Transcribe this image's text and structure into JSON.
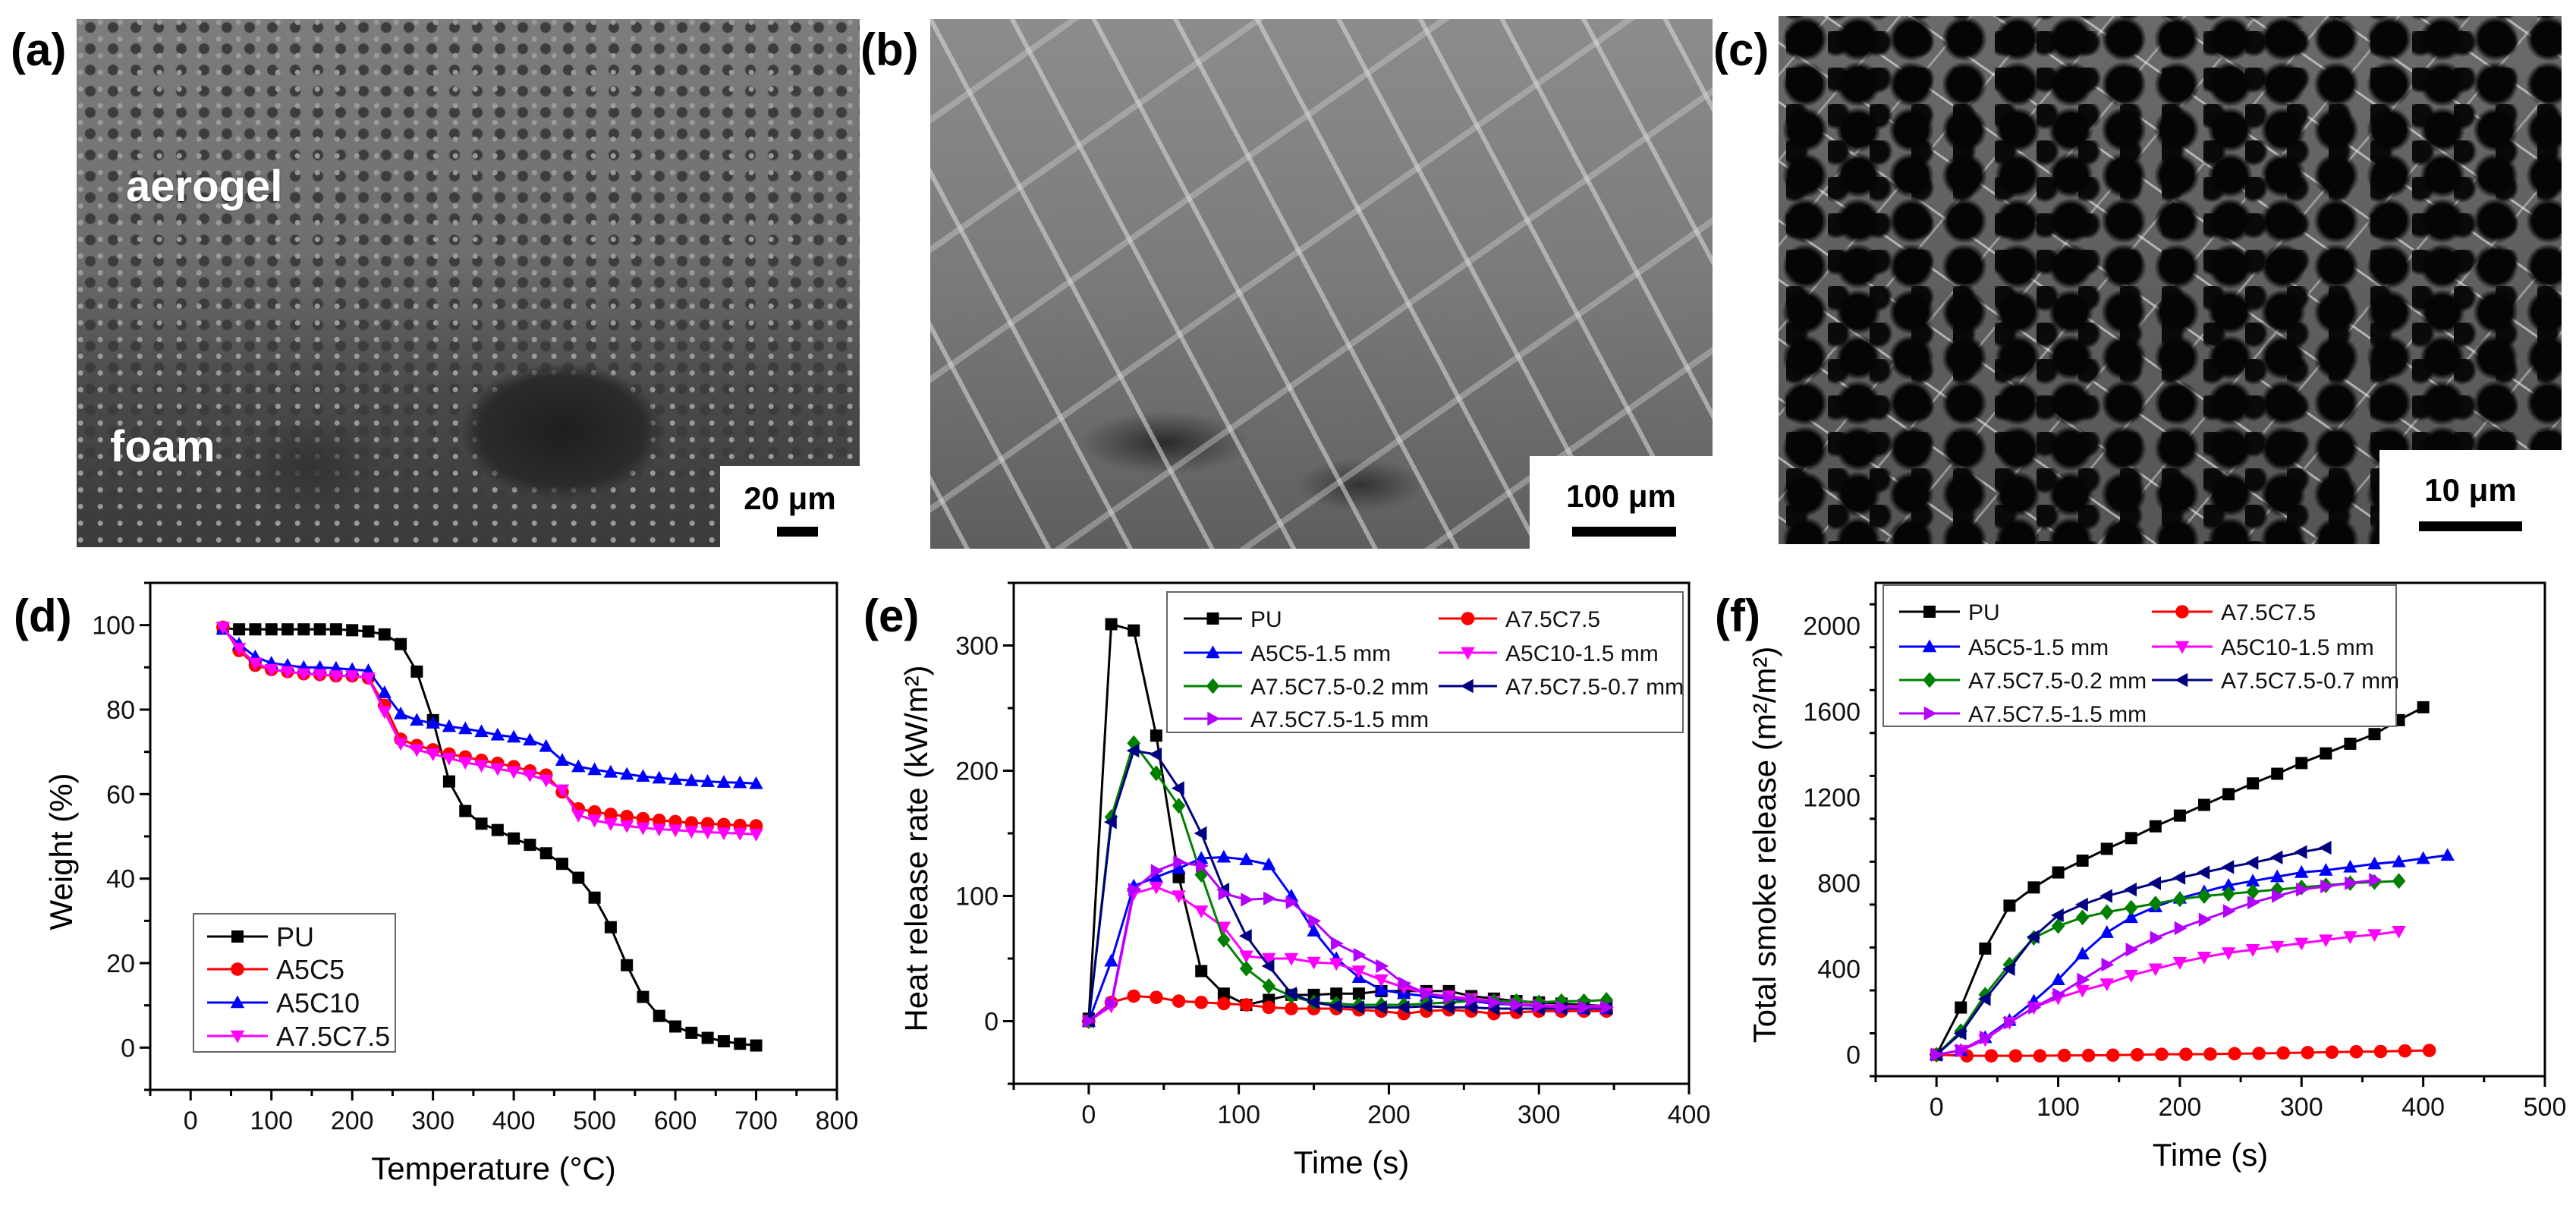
{
  "panels": {
    "a": {
      "label": "(a)",
      "annotations": [
        "aerogel",
        "foam"
      ],
      "scale_bar": "20 μm"
    },
    "b": {
      "label": "(b)",
      "scale_bar": "100 μm"
    },
    "c": {
      "label": "(c)",
      "scale_bar": "10 μm"
    }
  },
  "chart_data": [
    {
      "panel_label": "(d)",
      "type": "line",
      "title": "",
      "xlabel": "Temperature (°C)",
      "ylabel": "Weight (%)",
      "xlim": [
        -50,
        800
      ],
      "ylim": [
        -10,
        110
      ],
      "xticks": [
        0,
        100,
        200,
        300,
        400,
        500,
        600,
        700,
        800
      ],
      "yticks": [
        0,
        20,
        40,
        60,
        80,
        100
      ],
      "x_minor_step": 50,
      "y_minor_step": 10,
      "grid": false,
      "legend_position": "bottom-left",
      "x": [
        40,
        60,
        80,
        100,
        120,
        140,
        160,
        180,
        200,
        220,
        240,
        260,
        280,
        300,
        320,
        340,
        360,
        380,
        400,
        420,
        440,
        460,
        480,
        500,
        520,
        540,
        560,
        580,
        600,
        620,
        640,
        660,
        680,
        700
      ],
      "series": [
        {
          "name": "PU",
          "color": "#000000",
          "marker": "square",
          "y": [
            99.3,
            99,
            99,
            99,
            99,
            99,
            99,
            99,
            98.8,
            98.5,
            97.8,
            95.5,
            89,
            77.5,
            63,
            56,
            53,
            51.5,
            49.5,
            48,
            46,
            43.5,
            40.2,
            35.5,
            28.5,
            19.5,
            12,
            7.5,
            5,
            3.5,
            2.3,
            1.5,
            0.9,
            0.5
          ]
        },
        {
          "name": "A5C5",
          "color": "#ff0000",
          "marker": "circle",
          "y": [
            99.5,
            94,
            90.5,
            89.5,
            89,
            88.5,
            88.3,
            88,
            88,
            87.5,
            81,
            73,
            71.5,
            70.5,
            69.5,
            68.8,
            68,
            67.3,
            66.5,
            65.5,
            64.5,
            60.5,
            56.5,
            55.8,
            55.2,
            54.7,
            54.2,
            53.8,
            53.5,
            53.2,
            53,
            52.8,
            52.6,
            52.5
          ]
        },
        {
          "name": "A5C10",
          "color": "#0000ff",
          "marker": "triangle-up",
          "y": [
            99,
            95.5,
            92.5,
            91,
            90.5,
            90,
            90,
            89.8,
            89.5,
            89.2,
            84,
            79,
            77.5,
            76.8,
            76,
            75.5,
            74.8,
            74,
            73.5,
            72.8,
            71.3,
            68,
            66.5,
            65.8,
            65.2,
            64.7,
            64.2,
            63.8,
            63.5,
            63.2,
            63,
            62.8,
            62.7,
            62.5
          ]
        },
        {
          "name": "A7.5C7.5",
          "color": "#ff00ff",
          "marker": "triangle-down",
          "y": [
            99.5,
            94.5,
            91,
            89.5,
            89,
            88.5,
            88.3,
            88,
            88,
            87.5,
            79.5,
            72,
            70.5,
            69.5,
            68.5,
            67.5,
            66.8,
            66,
            65.3,
            64.5,
            63.3,
            61,
            55,
            53.8,
            53,
            52.5,
            52,
            51.7,
            51.5,
            51.2,
            51,
            50.8,
            50.7,
            50.5
          ]
        }
      ]
    },
    {
      "panel_label": "(e)",
      "type": "line",
      "title": "",
      "xlabel": "Time (s)",
      "ylabel": "Heat release rate (kW/m²)",
      "xlim": [
        -50,
        400
      ],
      "ylim": [
        -50,
        350
      ],
      "xticks": [
        0,
        100,
        200,
        300,
        400
      ],
      "yticks": [
        0,
        100,
        200,
        300
      ],
      "x_minor_step": 50,
      "y_minor_step": 50,
      "grid": false,
      "legend_position": "top-right",
      "x": [
        0,
        15,
        30,
        45,
        60,
        75,
        90,
        105,
        120,
        135,
        150,
        165,
        180,
        195,
        210,
        225,
        240,
        255,
        270,
        285,
        300,
        315,
        330,
        345
      ],
      "series": [
        {
          "name": "PU",
          "color": "#000000",
          "marker": "square",
          "y": [
            2,
            317,
            312,
            228,
            115,
            40,
            22,
            13,
            17,
            21,
            21,
            22,
            22,
            24,
            24,
            24,
            24,
            20,
            18,
            16,
            15,
            14,
            13,
            12
          ]
        },
        {
          "name": "A7.5C7.5",
          "color": "#ff0000",
          "marker": "circle",
          "y": [
            0,
            15,
            20,
            19,
            16,
            15,
            14,
            13,
            11,
            10,
            10,
            10,
            9,
            8,
            6,
            8,
            9,
            8,
            6,
            7,
            8,
            8,
            8,
            8
          ]
        },
        {
          "name": "A5C5-1.5 mm",
          "color": "#0000ff",
          "marker": "triangle-up",
          "y": [
            0,
            48,
            108,
            115,
            122,
            130,
            131,
            129,
            125,
            100,
            72,
            50,
            35,
            25,
            22,
            20,
            18,
            16,
            14,
            13,
            12,
            11,
            10,
            10
          ]
        },
        {
          "name": "A5C10-1.5 mm",
          "color": "#ff00ff",
          "marker": "triangle-down",
          "y": [
            0,
            12,
            102,
            107,
            100,
            88,
            75,
            52,
            50,
            50,
            47,
            46,
            40,
            33,
            27,
            22,
            20,
            18,
            16,
            14,
            13,
            12,
            12,
            12
          ]
        },
        {
          "name": "A7.5C7.5-0.2 mm",
          "color": "#008000",
          "marker": "diamond",
          "y": [
            0,
            163,
            222,
            198,
            172,
            117,
            65,
            42,
            28,
            20,
            15,
            14,
            13,
            13,
            13,
            14,
            15,
            16,
            16,
            16,
            15,
            16,
            16,
            17
          ]
        },
        {
          "name": "A7.5C7.5-0.7 mm",
          "color": "#000080",
          "marker": "triangle-left",
          "y": [
            0,
            159,
            216,
            213,
            186,
            150,
            105,
            68,
            44,
            22,
            15,
            12,
            11,
            11,
            11,
            12,
            11,
            11,
            10,
            10,
            10,
            10,
            10,
            10
          ]
        },
        {
          "name": "A7.5C7.5-1.5 mm",
          "color": "#b400ff",
          "marker": "triangle-right",
          "y": [
            0,
            14,
            105,
            120,
            127,
            124,
            102,
            97,
            98,
            95,
            80,
            62,
            53,
            44,
            30,
            22,
            19,
            17,
            15,
            13,
            12,
            11,
            11,
            11
          ]
        }
      ]
    },
    {
      "panel_label": "(f)",
      "type": "line",
      "title": "",
      "xlabel": "Time (s)",
      "ylabel": "Total smoke release (m²/m²)",
      "xlim": [
        -50,
        500
      ],
      "ylim": [
        -100,
        2200
      ],
      "xticks": [
        0,
        100,
        200,
        300,
        400,
        500
      ],
      "yticks": [
        0,
        400,
        800,
        1200,
        1600,
        2000
      ],
      "x_minor_step": 50,
      "y_minor_step": 200,
      "grid": false,
      "legend_position": "top-left",
      "series": [
        {
          "name": "PU",
          "color": "#000000",
          "marker": "square",
          "x": [
            0,
            20,
            40,
            60,
            80,
            100,
            120,
            140,
            160,
            180,
            200,
            220,
            240,
            260,
            280,
            300,
            320,
            340,
            360,
            380,
            400
          ],
          "y": [
            0,
            220,
            495,
            695,
            780,
            850,
            905,
            960,
            1010,
            1065,
            1115,
            1165,
            1215,
            1265,
            1310,
            1360,
            1405,
            1450,
            1495,
            1560,
            1620
          ]
        },
        {
          "name": "A7.5C7.5",
          "color": "#ff0000",
          "marker": "circle",
          "x": [
            0,
            25,
            45,
            65,
            85,
            105,
            125,
            145,
            165,
            185,
            205,
            225,
            245,
            265,
            285,
            305,
            325,
            345,
            365,
            385,
            405
          ],
          "y": [
            0,
            -5,
            -5,
            -5,
            -5,
            -3,
            -3,
            -2,
            0,
            2,
            2,
            3,
            5,
            6,
            8,
            10,
            12,
            14,
            15,
            18,
            20
          ]
        },
        {
          "name": "A5C5-1.5 mm",
          "color": "#0000ff",
          "marker": "triangle-up",
          "x": [
            0,
            20,
            40,
            60,
            80,
            100,
            120,
            140,
            160,
            180,
            200,
            220,
            240,
            260,
            280,
            300,
            320,
            340,
            360,
            380,
            400,
            420
          ],
          "y": [
            0,
            20,
            80,
            160,
            250,
            350,
            470,
            570,
            640,
            690,
            730,
            760,
            790,
            810,
            830,
            850,
            860,
            875,
            890,
            900,
            915,
            930
          ]
        },
        {
          "name": "A5C10-1.5 mm",
          "color": "#ff00ff",
          "marker": "triangle-down",
          "x": [
            0,
            20,
            40,
            60,
            80,
            100,
            120,
            140,
            160,
            180,
            200,
            220,
            240,
            260,
            280,
            300,
            320,
            340,
            360,
            380
          ],
          "y": [
            0,
            20,
            70,
            150,
            220,
            265,
            300,
            330,
            370,
            400,
            430,
            455,
            475,
            490,
            505,
            520,
            535,
            550,
            560,
            575
          ]
        },
        {
          "name": "A7.5C7.5-0.2 mm",
          "color": "#008000",
          "marker": "diamond",
          "x": [
            0,
            20,
            40,
            60,
            80,
            100,
            120,
            140,
            160,
            180,
            200,
            220,
            240,
            260,
            280,
            300,
            320,
            340,
            360,
            380
          ],
          "y": [
            0,
            110,
            280,
            420,
            545,
            600,
            640,
            665,
            685,
            705,
            725,
            740,
            750,
            760,
            770,
            780,
            790,
            800,
            805,
            810
          ]
        },
        {
          "name": "A7.5C7.5-0.7 mm",
          "color": "#000080",
          "marker": "triangle-left",
          "x": [
            0,
            20,
            40,
            60,
            80,
            100,
            120,
            140,
            160,
            180,
            200,
            220,
            240,
            260,
            280,
            300,
            320
          ],
          "y": [
            0,
            100,
            260,
            400,
            550,
            650,
            700,
            740,
            770,
            800,
            825,
            850,
            875,
            895,
            920,
            945,
            965
          ]
        },
        {
          "name": "A7.5C7.5-1.5 mm",
          "color": "#b400ff",
          "marker": "triangle-right",
          "x": [
            0,
            20,
            40,
            60,
            80,
            100,
            120,
            140,
            160,
            180,
            200,
            220,
            240,
            260,
            280,
            300,
            320,
            340,
            360
          ],
          "y": [
            0,
            20,
            80,
            150,
            220,
            280,
            350,
            420,
            490,
            545,
            590,
            630,
            670,
            710,
            740,
            770,
            785,
            800,
            815
          ]
        }
      ]
    }
  ]
}
